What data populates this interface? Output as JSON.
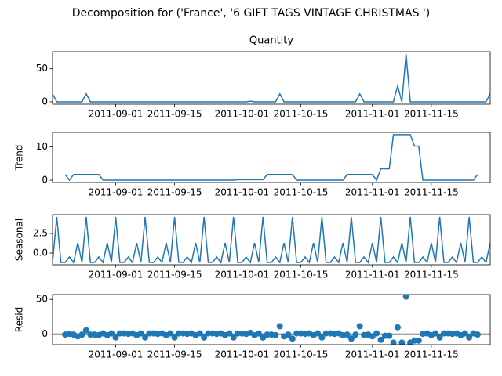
{
  "title": "Decomposition for ('France', '6 GIFT TAGS VINTAGE CHRISTMAS ')",
  "chart_data": {
    "type": "line",
    "x": [
      "2011-08-17",
      "2011-08-18",
      "2011-08-19",
      "2011-08-20",
      "2011-08-21",
      "2011-08-22",
      "2011-08-23",
      "2011-08-24",
      "2011-08-25",
      "2011-08-26",
      "2011-08-27",
      "2011-08-28",
      "2011-08-29",
      "2011-08-30",
      "2011-08-31",
      "2011-09-01",
      "2011-09-02",
      "2011-09-03",
      "2011-09-04",
      "2011-09-05",
      "2011-09-06",
      "2011-09-07",
      "2011-09-08",
      "2011-09-09",
      "2011-09-10",
      "2011-09-11",
      "2011-09-12",
      "2011-09-13",
      "2011-09-14",
      "2011-09-15",
      "2011-09-16",
      "2011-09-17",
      "2011-09-18",
      "2011-09-19",
      "2011-09-20",
      "2011-09-21",
      "2011-09-22",
      "2011-09-23",
      "2011-09-24",
      "2011-09-25",
      "2011-09-26",
      "2011-09-27",
      "2011-09-28",
      "2011-09-29",
      "2011-09-30",
      "2011-10-01",
      "2011-10-02",
      "2011-10-03",
      "2011-10-04",
      "2011-10-05",
      "2011-10-06",
      "2011-10-07",
      "2011-10-08",
      "2011-10-09",
      "2011-10-10",
      "2011-10-11",
      "2011-10-12",
      "2011-10-13",
      "2011-10-14",
      "2011-10-15",
      "2011-10-16",
      "2011-10-17",
      "2011-10-18",
      "2011-10-19",
      "2011-10-20",
      "2011-10-21",
      "2011-10-22",
      "2011-10-23",
      "2011-10-24",
      "2011-10-25",
      "2011-10-26",
      "2011-10-27",
      "2011-10-28",
      "2011-10-29",
      "2011-10-30",
      "2011-10-31",
      "2011-11-01",
      "2011-11-02",
      "2011-11-03",
      "2011-11-04",
      "2011-11-05",
      "2011-11-06",
      "2011-11-07",
      "2011-11-08",
      "2011-11-09",
      "2011-11-10",
      "2011-11-11",
      "2011-11-12",
      "2011-11-13",
      "2011-11-14",
      "2011-11-15",
      "2011-11-16",
      "2011-11-17",
      "2011-11-18",
      "2011-11-19",
      "2011-11-20",
      "2011-11-21",
      "2011-11-22",
      "2011-11-23",
      "2011-11-24",
      "2011-11-25",
      "2011-11-26",
      "2011-11-27",
      "2011-11-28",
      "2011-11-29"
    ],
    "xlim": [
      "2011-08-17",
      "2011-11-29"
    ],
    "xticks": [
      "2011-09-01",
      "2011-09-15",
      "2011-10-01",
      "2011-10-15",
      "2011-11-01",
      "2011-11-15"
    ],
    "panels": [
      {
        "type": "line",
        "title": "Quantity",
        "color": "#1f77b4",
        "ylim": [
          -3.6,
          75.6
        ],
        "yticks": [
          0,
          50
        ],
        "values": [
          12,
          0,
          0,
          0,
          0,
          0,
          0,
          0,
          12,
          0,
          0,
          0,
          0,
          0,
          0,
          0,
          0,
          0,
          0,
          0,
          0,
          0,
          0,
          0,
          0,
          0,
          0,
          0,
          0,
          0,
          0,
          0,
          0,
          0,
          0,
          0,
          0,
          0,
          0,
          0,
          0,
          0,
          0,
          0,
          0,
          0,
          0,
          1,
          0,
          0,
          0,
          0,
          0,
          0,
          12,
          0,
          0,
          0,
          0,
          0,
          0,
          0,
          0,
          0,
          0,
          0,
          0,
          0,
          0,
          0,
          0,
          0,
          0,
          12,
          0,
          0,
          0,
          0,
          0,
          0,
          0,
          0,
          24,
          0,
          72,
          0,
          0,
          0,
          0,
          0,
          0,
          0,
          0,
          0,
          0,
          0,
          0,
          0,
          0,
          0,
          0,
          0,
          0,
          0,
          12
        ]
      },
      {
        "type": "line",
        "ylabel": "Trend",
        "color": "#1f77b4",
        "ylim": [
          -0.7,
          14.4
        ],
        "yticks": [
          0,
          10
        ],
        "values": [
          null,
          null,
          null,
          1.714,
          0,
          1.714,
          1.714,
          1.714,
          1.714,
          1.714,
          1.714,
          1.714,
          0,
          0,
          0,
          0,
          0,
          0,
          0,
          0,
          0,
          0,
          0,
          0,
          0,
          0,
          0,
          0,
          0,
          0,
          0,
          0,
          0,
          0,
          0,
          0,
          0,
          0,
          0,
          0,
          0,
          0,
          0,
          0,
          0.143,
          0.143,
          0.143,
          0.143,
          0.143,
          0.143,
          0.143,
          1.714,
          1.714,
          1.714,
          1.714,
          1.714,
          1.714,
          1.714,
          0,
          0,
          0,
          0,
          0,
          0,
          0,
          0,
          0,
          0,
          0,
          0,
          1.714,
          1.714,
          1.714,
          1.714,
          1.714,
          1.714,
          1.714,
          0,
          3.429,
          3.429,
          3.429,
          13.714,
          13.714,
          13.714,
          13.714,
          13.714,
          10.286,
          10.286,
          0,
          0,
          0,
          0,
          0,
          0,
          0,
          0,
          0,
          0,
          0,
          0,
          0,
          1.714,
          null,
          null,
          null
        ]
      },
      {
        "type": "line",
        "ylabel": "Seasonal",
        "color": "#1f77b4",
        "ylim": [
          -1.5,
          4.9
        ],
        "yticks": [
          {
            "value": 0,
            "label": "0.0"
          },
          {
            "value": 2.5,
            "label": "2.5"
          }
        ],
        "values": [
          -1.2,
          4.6,
          -1.2,
          -1.2,
          -0.5,
          -1.2,
          1.3,
          -1.2,
          4.6,
          -1.2,
          -1.2,
          -0.5,
          -1.2,
          1.3,
          -1.2,
          4.6,
          -1.2,
          -1.2,
          -0.5,
          -1.2,
          1.3,
          -1.2,
          4.6,
          -1.2,
          -1.2,
          -0.5,
          -1.2,
          1.3,
          -1.2,
          4.6,
          -1.2,
          -1.2,
          -0.5,
          -1.2,
          1.3,
          -1.2,
          4.6,
          -1.2,
          -1.2,
          -0.5,
          -1.2,
          1.3,
          -1.2,
          4.6,
          -1.2,
          -1.2,
          -0.5,
          -1.2,
          1.3,
          -1.2,
          4.6,
          -1.2,
          -1.2,
          -0.5,
          -1.2,
          1.3,
          -1.2,
          4.6,
          -1.2,
          -1.2,
          -0.5,
          -1.2,
          1.3,
          -1.2,
          4.6,
          -1.2,
          -1.2,
          -0.5,
          -1.2,
          1.3,
          -1.2,
          4.6,
          -1.2,
          -1.2,
          -0.5,
          -1.2,
          1.3,
          -1.2,
          4.6,
          -1.2,
          -1.2,
          -0.5,
          -1.2,
          1.3,
          -1.2,
          4.6,
          -1.2,
          -1.2,
          -0.5,
          -1.2,
          1.3,
          -1.2,
          4.6,
          -1.2,
          -1.2,
          -0.5,
          -1.2,
          1.3,
          -1.2,
          4.6,
          -1.2,
          -1.2,
          -0.5,
          -1.2,
          1.3
        ]
      },
      {
        "type": "scatter",
        "ylabel": "Resid",
        "color": "#1f77b4",
        "hline": 0,
        "hline_color": "#000000",
        "ylim": [
          -15,
          57
        ],
        "yticks": [
          0,
          50
        ],
        "values": [
          null,
          null,
          null,
          -0.51,
          0.5,
          -0.51,
          -3.01,
          -0.51,
          5.69,
          -0.51,
          -0.51,
          -1.21,
          1.2,
          -1.3,
          1.2,
          -4.6,
          1.2,
          1.2,
          0.5,
          1.2,
          -1.3,
          1.2,
          -4.6,
          1.2,
          1.2,
          0.5,
          1.2,
          -1.3,
          1.2,
          -4.6,
          1.2,
          1.2,
          0.5,
          1.2,
          -1.3,
          1.2,
          -4.6,
          1.2,
          1.2,
          0.5,
          1.2,
          -1.3,
          1.2,
          -4.6,
          1.06,
          1.06,
          0.36,
          2.06,
          -1.44,
          1.06,
          -4.74,
          -0.51,
          -0.51,
          -1.21,
          11.49,
          -3.01,
          -0.51,
          -6.31,
          1.2,
          1.2,
          0.5,
          1.2,
          -1.3,
          1.2,
          -4.6,
          1.2,
          1.2,
          0.5,
          1.2,
          -1.3,
          -0.51,
          -6.31,
          -0.51,
          11.49,
          -1.21,
          -0.51,
          -3.01,
          1.2,
          -8.03,
          -2.23,
          -2.23,
          -12,
          10,
          -12,
          54,
          -12,
          -9.09,
          -9.09,
          0.5,
          1.2,
          -1.3,
          1.2,
          -4.6,
          1.2,
          1.2,
          0.5,
          1.2,
          -1.3,
          1.2,
          -4.6,
          1.2,
          -0.51,
          null,
          null,
          null
        ]
      }
    ]
  }
}
